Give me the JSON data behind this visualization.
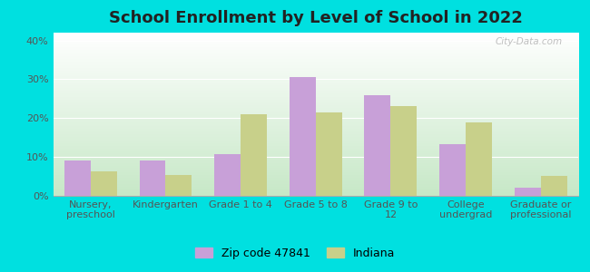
{
  "title": "School Enrollment by Level of School in 2022",
  "categories": [
    "Nursery,\npreschool",
    "Kindergarten",
    "Grade 1 to 4",
    "Grade 5 to 8",
    "Grade 9 to\n12",
    "College\nundergrad",
    "Graduate or\nprofessional"
  ],
  "zip_values": [
    9.0,
    9.2,
    10.8,
    30.5,
    26.0,
    13.2,
    2.2
  ],
  "indiana_values": [
    6.2,
    5.3,
    21.0,
    21.5,
    23.2,
    19.0,
    5.2
  ],
  "zip_color": "#c8a0d8",
  "indiana_color": "#c8d08a",
  "background_outer": "#00e0e0",
  "gradient_top": "#ffffff",
  "gradient_bottom": "#c8e8c8",
  "ylim": [
    0,
    42
  ],
  "yticks": [
    0,
    10,
    20,
    30,
    40
  ],
  "legend_zip_label": "Zip code 47841",
  "legend_indiana_label": "Indiana",
  "watermark": "City-Data.com",
  "title_fontsize": 13,
  "tick_fontsize": 8,
  "legend_fontsize": 9
}
